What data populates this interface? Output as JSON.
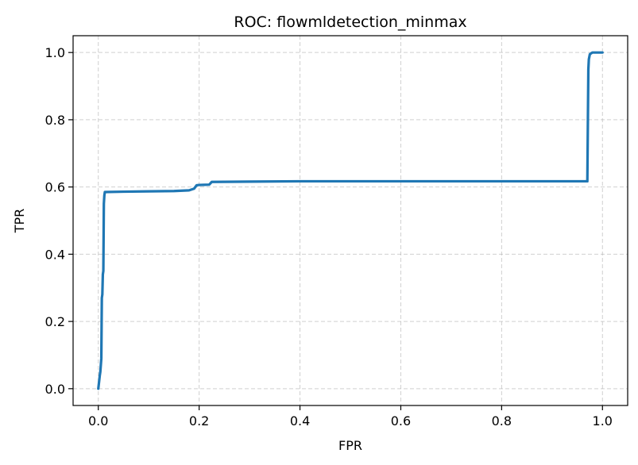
{
  "chart_data": {
    "type": "line",
    "title": "ROC: flowmldetection_minmax",
    "xlabel": "FPR",
    "ylabel": "TPR",
    "xlim": [
      -0.05,
      1.05
    ],
    "ylim": [
      -0.05,
      1.05
    ],
    "xticks": [
      0.0,
      0.2,
      0.4,
      0.6,
      0.8,
      1.0
    ],
    "xtick_labels": [
      "0.0",
      "0.2",
      "0.4",
      "0.6",
      "0.8",
      "1.0"
    ],
    "yticks": [
      0.0,
      0.2,
      0.4,
      0.6,
      0.8,
      1.0
    ],
    "ytick_labels": [
      "0.0",
      "0.2",
      "0.4",
      "0.6",
      "0.8",
      "1.0"
    ],
    "grid": true,
    "grid_style": "dashed",
    "series": [
      {
        "color": "#1f77b4",
        "x": [
          0.0,
          0.003,
          0.004,
          0.006,
          0.007,
          0.008,
          0.009,
          0.01,
          0.011,
          0.012,
          0.013,
          0.05,
          0.1,
          0.15,
          0.18,
          0.19,
          0.195,
          0.2,
          0.22,
          0.225,
          0.3,
          0.4,
          0.6,
          0.8,
          0.97,
          0.972,
          0.973,
          0.975,
          0.98,
          1.0
        ],
        "y": [
          0.0,
          0.04,
          0.05,
          0.09,
          0.27,
          0.28,
          0.34,
          0.35,
          0.55,
          0.575,
          0.585,
          0.586,
          0.587,
          0.588,
          0.59,
          0.595,
          0.605,
          0.606,
          0.607,
          0.615,
          0.616,
          0.617,
          0.617,
          0.617,
          0.617,
          0.95,
          0.98,
          0.995,
          1.0,
          1.0
        ]
      }
    ]
  }
}
